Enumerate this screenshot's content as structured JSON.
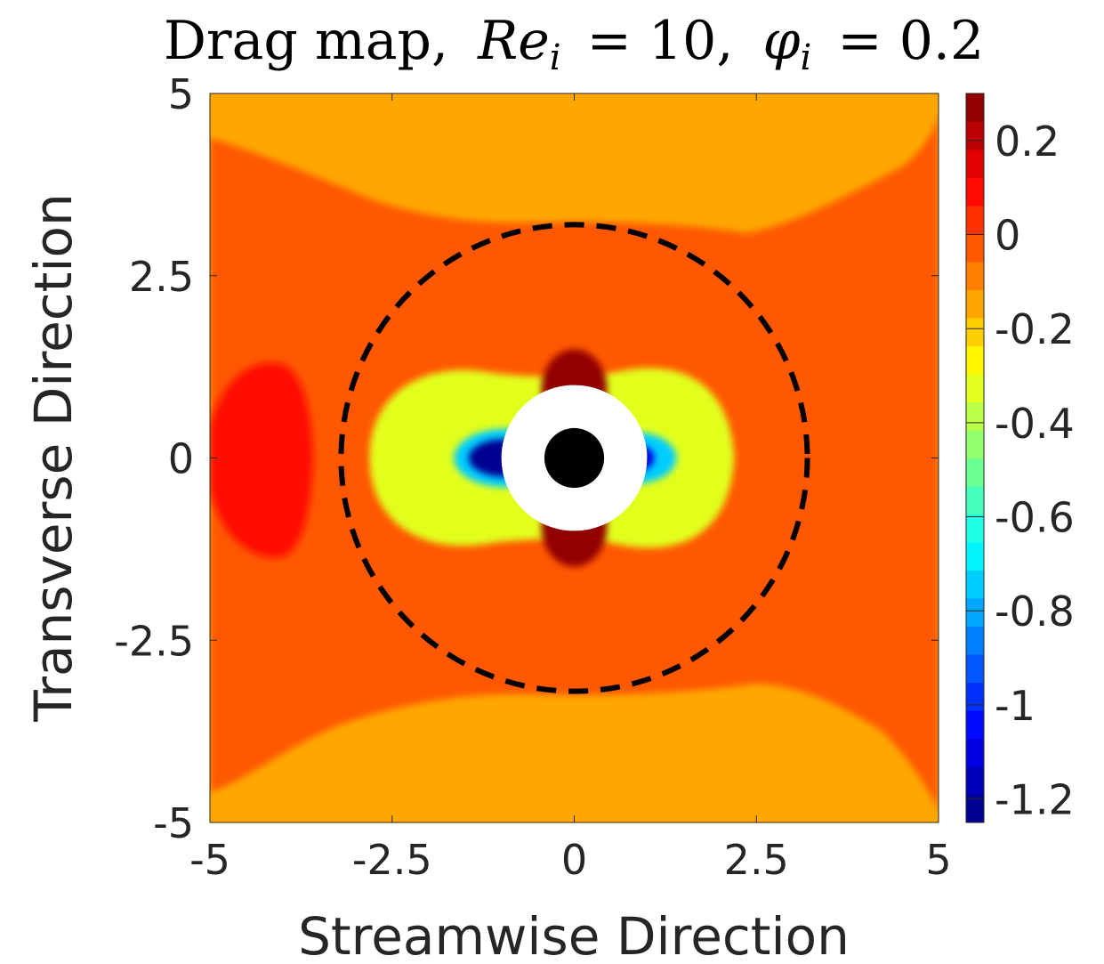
{
  "chart_data": {
    "type": "contour",
    "title": {
      "prefix": "Drag map,",
      "re_symbol": "Re",
      "re_sub": "i",
      "re_value": "= 10,",
      "phi_symbol": "φ",
      "phi_sub": "i",
      "phi_value": "= 0.2"
    },
    "xlabel": "Streamwise Direction",
    "ylabel": "Transverse Direction",
    "xlim": [
      -5,
      5
    ],
    "ylim": [
      -5,
      5
    ],
    "xticks": [
      -5,
      -2.5,
      0,
      2.5,
      5
    ],
    "xtick_labels": [
      "-5",
      "-2.5",
      "0",
      "2.5",
      "5"
    ],
    "yticks": [
      -5,
      -2.5,
      0,
      2.5,
      5
    ],
    "ytick_labels": [
      "-5",
      "-2.5",
      "0",
      "2.5",
      "5"
    ],
    "colorbar": {
      "range": [
        -1.25,
        0.3
      ],
      "ticks": [
        0.2,
        0,
        -0.2,
        -0.4,
        -0.6,
        -0.8,
        -1,
        -1.2
      ],
      "tick_labels": [
        "0.2",
        "0",
        "-0.2",
        "-0.4",
        "-0.6",
        "-0.8",
        "-1",
        "-1.2"
      ],
      "colormap": "jet",
      "levels": 26
    },
    "background_value": -0.12,
    "regions": [
      {
        "name": "outer-orange-band",
        "value": -0.05
      },
      {
        "name": "upstream-red-lobe",
        "value": 0.07
      },
      {
        "name": "top-red-lobe",
        "value": 0.28
      },
      {
        "name": "bottom-red-lobe",
        "value": 0.28
      },
      {
        "name": "left-blue-lobe",
        "value": -1.22
      },
      {
        "name": "right-blue-lobe",
        "value": -1.12
      }
    ],
    "particle": {
      "center": [
        0,
        0
      ],
      "radius": 0.5,
      "excluded_radius": 1.0
    },
    "dashed_circle": {
      "center": [
        0,
        0
      ],
      "radius": 3.2
    }
  },
  "colors": {
    "particle": "#000000",
    "excluded": "#ffffff",
    "dashed": "#000000",
    "text": "#262626"
  }
}
